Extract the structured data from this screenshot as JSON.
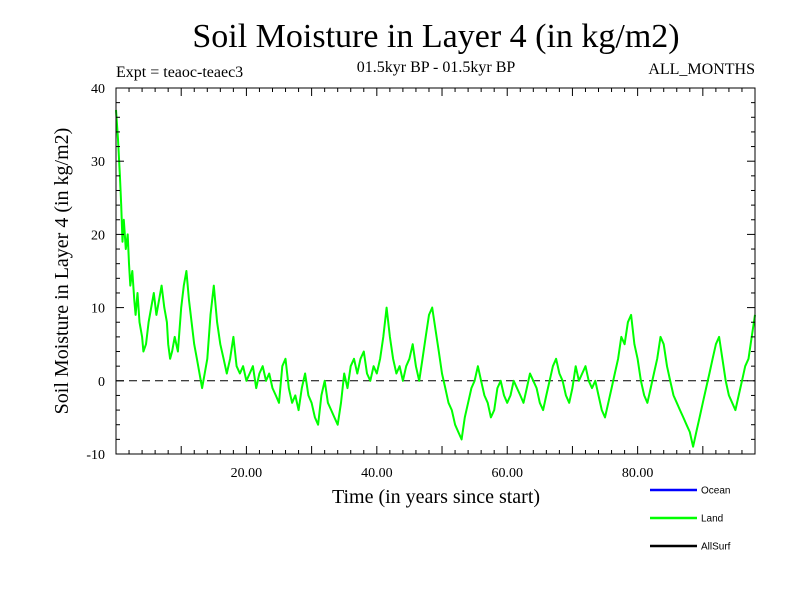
{
  "chart_data": {
    "type": "line",
    "title": "Soil Moisture in Layer 4 (in kg/m2)",
    "subtitle_left": "Expt = teaoc-teaec3",
    "subtitle_center": "01.5kyr BP - 01.5kyr BP",
    "subtitle_right": "ALL_MONTHS",
    "xlabel": "Time (in years since start)",
    "ylabel": "Soil Moisture in Layer 4 (in kg/m2)",
    "xlim": [
      0,
      98
    ],
    "ylim": [
      -10,
      40
    ],
    "x_ticks": [
      20,
      40,
      60,
      80
    ],
    "x_tick_labels": [
      "20.00",
      "40.00",
      "60.00",
      "80.00"
    ],
    "y_ticks": [
      -10,
      0,
      10,
      20,
      30,
      40
    ],
    "y_tick_labels": [
      "-10",
      "0",
      "10",
      "20",
      "30",
      "40"
    ],
    "zero_line": true,
    "series": [
      {
        "name": "Land",
        "color": "#00ff00",
        "points": [
          [
            0,
            37
          ],
          [
            0.3,
            33
          ],
          [
            0.6,
            28
          ],
          [
            0.8,
            24
          ],
          [
            1.0,
            19
          ],
          [
            1.2,
            22
          ],
          [
            1.5,
            18
          ],
          [
            1.8,
            20
          ],
          [
            2.0,
            16
          ],
          [
            2.2,
            13
          ],
          [
            2.5,
            15
          ],
          [
            2.8,
            11
          ],
          [
            3.0,
            9
          ],
          [
            3.3,
            12
          ],
          [
            3.6,
            8
          ],
          [
            4.0,
            6
          ],
          [
            4.2,
            4
          ],
          [
            4.6,
            5
          ],
          [
            5.0,
            8
          ],
          [
            5.4,
            10
          ],
          [
            5.8,
            12
          ],
          [
            6.2,
            9
          ],
          [
            6.6,
            11
          ],
          [
            7.0,
            13
          ],
          [
            7.4,
            10
          ],
          [
            7.8,
            8
          ],
          [
            8.0,
            5
          ],
          [
            8.3,
            3
          ],
          [
            8.6,
            4
          ],
          [
            9.0,
            6
          ],
          [
            9.5,
            4
          ],
          [
            10.0,
            10
          ],
          [
            10.4,
            13
          ],
          [
            10.8,
            15
          ],
          [
            11.2,
            11
          ],
          [
            11.6,
            8
          ],
          [
            12.0,
            5
          ],
          [
            12.4,
            3
          ],
          [
            12.8,
            1
          ],
          [
            13.2,
            -1
          ],
          [
            13.6,
            1
          ],
          [
            14.0,
            3
          ],
          [
            14.5,
            9
          ],
          [
            15.0,
            13
          ],
          [
            15.5,
            8
          ],
          [
            16.0,
            5
          ],
          [
            16.5,
            3
          ],
          [
            17.0,
            1
          ],
          [
            17.5,
            3
          ],
          [
            18.0,
            6
          ],
          [
            18.5,
            2
          ],
          [
            19.0,
            1
          ],
          [
            19.5,
            2
          ],
          [
            20.0,
            0
          ],
          [
            20.5,
            1
          ],
          [
            21.0,
            2
          ],
          [
            21.5,
            -1
          ],
          [
            22.0,
            1
          ],
          [
            22.5,
            2
          ],
          [
            23.0,
            0
          ],
          [
            23.5,
            1
          ],
          [
            24.0,
            -1
          ],
          [
            24.5,
            -2
          ],
          [
            25.0,
            -3
          ],
          [
            25.5,
            2
          ],
          [
            26.0,
            3
          ],
          [
            26.5,
            -1
          ],
          [
            27.0,
            -3
          ],
          [
            27.5,
            -2
          ],
          [
            28.0,
            -4
          ],
          [
            28.5,
            -1
          ],
          [
            29.0,
            1
          ],
          [
            29.5,
            -2
          ],
          [
            30.0,
            -3
          ],
          [
            30.5,
            -5
          ],
          [
            31.0,
            -6
          ],
          [
            31.5,
            -2
          ],
          [
            32.0,
            0
          ],
          [
            32.5,
            -3
          ],
          [
            33.0,
            -4
          ],
          [
            33.5,
            -5
          ],
          [
            34.0,
            -6
          ],
          [
            34.5,
            -3
          ],
          [
            35.0,
            1
          ],
          [
            35.5,
            -1
          ],
          [
            36.0,
            2
          ],
          [
            36.5,
            3
          ],
          [
            37.0,
            1
          ],
          [
            37.5,
            3
          ],
          [
            38.0,
            4
          ],
          [
            38.5,
            1
          ],
          [
            39.0,
            0
          ],
          [
            39.5,
            2
          ],
          [
            40.0,
            1
          ],
          [
            40.5,
            3
          ],
          [
            41.0,
            6
          ],
          [
            41.5,
            10
          ],
          [
            42.0,
            6
          ],
          [
            42.5,
            3
          ],
          [
            43.0,
            1
          ],
          [
            43.5,
            2
          ],
          [
            44.0,
            0
          ],
          [
            44.5,
            2
          ],
          [
            45.0,
            3
          ],
          [
            45.5,
            5
          ],
          [
            46.0,
            2
          ],
          [
            46.5,
            0
          ],
          [
            47.0,
            3
          ],
          [
            47.5,
            6
          ],
          [
            48.0,
            9
          ],
          [
            48.5,
            10
          ],
          [
            49.0,
            7
          ],
          [
            49.5,
            4
          ],
          [
            50.0,
            1
          ],
          [
            50.5,
            -1
          ],
          [
            51.0,
            -3
          ],
          [
            51.5,
            -4
          ],
          [
            52.0,
            -6
          ],
          [
            52.5,
            -7
          ],
          [
            53.0,
            -8
          ],
          [
            53.5,
            -5
          ],
          [
            54.0,
            -3
          ],
          [
            54.5,
            -1
          ],
          [
            55.0,
            0
          ],
          [
            55.5,
            2
          ],
          [
            56.0,
            0
          ],
          [
            56.5,
            -2
          ],
          [
            57.0,
            -3
          ],
          [
            57.5,
            -5
          ],
          [
            58.0,
            -4
          ],
          [
            58.5,
            -1
          ],
          [
            59.0,
            0
          ],
          [
            59.5,
            -2
          ],
          [
            60.0,
            -3
          ],
          [
            60.5,
            -2
          ],
          [
            61.0,
            0
          ],
          [
            61.5,
            -1
          ],
          [
            62.0,
            -2
          ],
          [
            62.5,
            -3
          ],
          [
            63.0,
            -1
          ],
          [
            63.5,
            1
          ],
          [
            64.0,
            0
          ],
          [
            64.5,
            -1
          ],
          [
            65.0,
            -3
          ],
          [
            65.5,
            -4
          ],
          [
            66.0,
            -2
          ],
          [
            66.5,
            0
          ],
          [
            67.0,
            2
          ],
          [
            67.5,
            3
          ],
          [
            68.0,
            1
          ],
          [
            68.5,
            0
          ],
          [
            69.0,
            -2
          ],
          [
            69.5,
            -3
          ],
          [
            70.0,
            -1
          ],
          [
            70.5,
            2
          ],
          [
            71.0,
            0
          ],
          [
            71.5,
            1
          ],
          [
            72.0,
            2
          ],
          [
            72.5,
            0
          ],
          [
            73.0,
            -1
          ],
          [
            73.5,
            0
          ],
          [
            74.0,
            -2
          ],
          [
            74.5,
            -4
          ],
          [
            75.0,
            -5
          ],
          [
            75.5,
            -3
          ],
          [
            76.0,
            -1
          ],
          [
            76.5,
            1
          ],
          [
            77.0,
            3
          ],
          [
            77.5,
            6
          ],
          [
            78.0,
            5
          ],
          [
            78.5,
            8
          ],
          [
            79.0,
            9
          ],
          [
            79.5,
            5
          ],
          [
            80.0,
            3
          ],
          [
            80.5,
            0
          ],
          [
            81.0,
            -2
          ],
          [
            81.5,
            -3
          ],
          [
            82.0,
            -1
          ],
          [
            82.5,
            1
          ],
          [
            83.0,
            3
          ],
          [
            83.5,
            6
          ],
          [
            84.0,
            5
          ],
          [
            84.5,
            2
          ],
          [
            85.0,
            0
          ],
          [
            85.5,
            -2
          ],
          [
            86.0,
            -3
          ],
          [
            86.5,
            -4
          ],
          [
            87.0,
            -5
          ],
          [
            87.5,
            -6
          ],
          [
            88.0,
            -7
          ],
          [
            88.5,
            -9
          ],
          [
            89.0,
            -7
          ],
          [
            89.5,
            -5
          ],
          [
            90.0,
            -3
          ],
          [
            90.5,
            -1
          ],
          [
            91.0,
            1
          ],
          [
            91.5,
            3
          ],
          [
            92.0,
            5
          ],
          [
            92.5,
            6
          ],
          [
            93.0,
            3
          ],
          [
            93.5,
            0
          ],
          [
            94.0,
            -2
          ],
          [
            94.5,
            -3
          ],
          [
            95.0,
            -4
          ],
          [
            95.5,
            -2
          ],
          [
            96.0,
            0
          ],
          [
            96.5,
            2
          ],
          [
            97.0,
            3
          ],
          [
            97.5,
            6
          ],
          [
            98.0,
            9
          ]
        ]
      }
    ],
    "legend": {
      "placement": "bottom-right",
      "entries": [
        {
          "name": "Ocean",
          "color": "#0000ff"
        },
        {
          "name": "Land",
          "color": "#00ff00"
        },
        {
          "name": "AllSurf",
          "color": "#000000"
        }
      ]
    }
  }
}
